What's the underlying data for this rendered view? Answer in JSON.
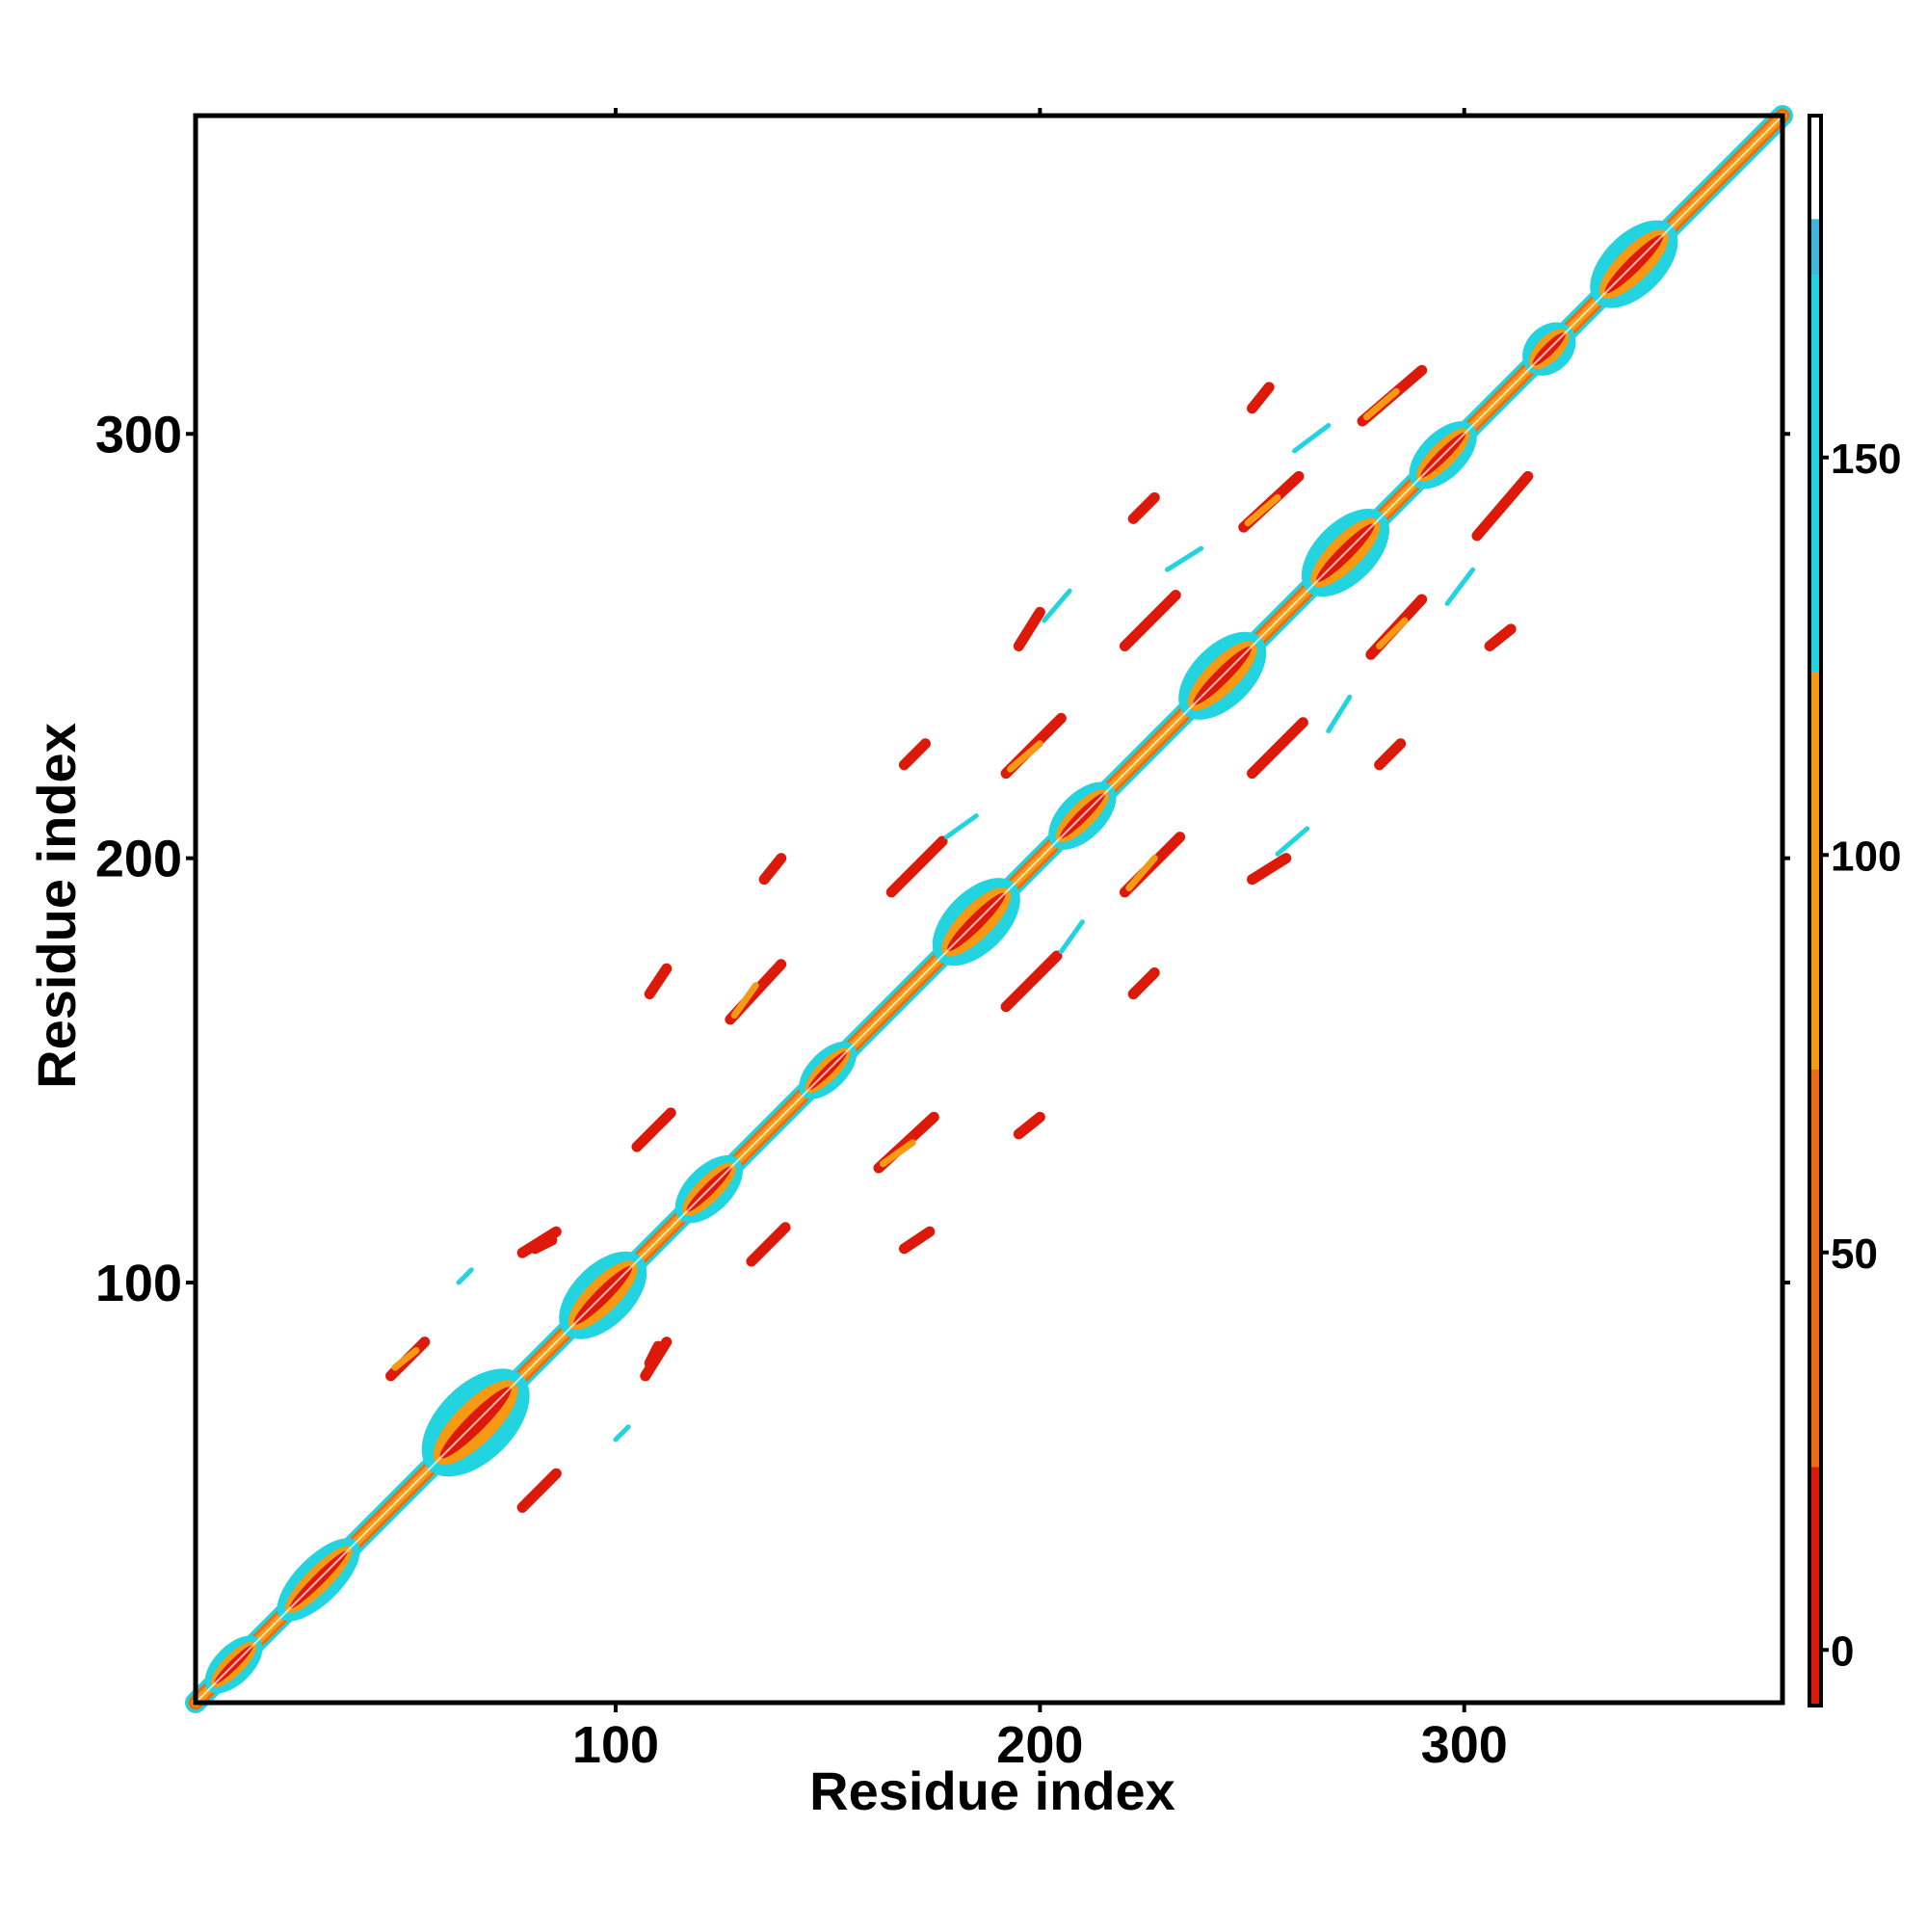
{
  "chart_data": {
    "type": "heatmap",
    "title": "",
    "xlabel": "Residue index",
    "ylabel": "Residue index",
    "xlim": [
      1,
      375
    ],
    "ylim": [
      1,
      375
    ],
    "x_ticks": [
      100,
      200,
      300
    ],
    "y_ticks": [
      100,
      200,
      300
    ],
    "grid": false,
    "colorbar": {
      "position": "right",
      "ticks": [
        0,
        50,
        100,
        150
      ],
      "range": [
        -7,
        193
      ],
      "bands": [
        {
          "from": -7,
          "to": 23,
          "color": "#dd1a0a"
        },
        {
          "from": 23,
          "to": 73,
          "color": "#f06a10"
        },
        {
          "from": 73,
          "to": 123,
          "color": "#f59a12"
        },
        {
          "from": 123,
          "to": 173,
          "color": "#22d3e0"
        },
        {
          "from": 173,
          "to": 180,
          "color": "#3bb8db"
        },
        {
          "from": 180,
          "to": 193,
          "color": "#ffffff"
        }
      ]
    },
    "diagonal": {
      "from": 1,
      "to": 375,
      "inner_color": "#f59a12",
      "edge_colors": [
        "#dd1a0a",
        "#f06a10",
        "#22d3e0"
      ]
    },
    "diagonal_blobs": [
      {
        "center": 10,
        "half_length": 6,
        "width": 5,
        "color": "#22d3e0"
      },
      {
        "center": 30,
        "half_length": 9,
        "width": 6,
        "color": "#22d3e0"
      },
      {
        "center": 67,
        "half_length": 11,
        "width": 10,
        "color": "#22d3e0"
      },
      {
        "center": 97,
        "half_length": 9,
        "width": 8,
        "color": "#22d3e0"
      },
      {
        "center": 122,
        "half_length": 7,
        "width": 6,
        "color": "#22d3e0"
      },
      {
        "center": 150,
        "half_length": 6,
        "width": 5,
        "color": "#22d3e0"
      },
      {
        "center": 185,
        "half_length": 9,
        "width": 8,
        "color": "#22d3e0"
      },
      {
        "center": 210,
        "half_length": 7,
        "width": 6,
        "color": "#22d3e0"
      },
      {
        "center": 243,
        "half_length": 9,
        "width": 8,
        "color": "#22d3e0"
      },
      {
        "center": 272,
        "half_length": 9,
        "width": 8,
        "color": "#22d3e0"
      },
      {
        "center": 295,
        "half_length": 7,
        "width": 6,
        "color": "#22d3e0"
      },
      {
        "center": 320,
        "half_length": 5,
        "width": 6,
        "color": "#22d3e0"
      },
      {
        "center": 340,
        "half_length": 9,
        "width": 8,
        "color": "#22d3e0"
      }
    ],
    "contact_streaks": [
      {
        "x1": 47,
        "y1": 78,
        "x2": 55,
        "y2": 86,
        "color": "#dd1a0a"
      },
      {
        "x1": 78,
        "y1": 47,
        "x2": 86,
        "y2": 55,
        "color": "#dd1a0a"
      },
      {
        "x1": 78,
        "y1": 107,
        "x2": 86,
        "y2": 112,
        "color": "#dd1a0a"
      },
      {
        "x1": 107,
        "y1": 78,
        "x2": 112,
        "y2": 86,
        "color": "#dd1a0a"
      },
      {
        "x1": 105,
        "y1": 132,
        "x2": 113,
        "y2": 140,
        "color": "#dd1a0a"
      },
      {
        "x1": 132,
        "y1": 105,
        "x2": 140,
        "y2": 113,
        "color": "#dd1a0a"
      },
      {
        "x1": 127,
        "y1": 162,
        "x2": 139,
        "y2": 175,
        "color": "#dd1a0a"
      },
      {
        "x1": 162,
        "y1": 127,
        "x2": 175,
        "y2": 139,
        "color": "#dd1a0a"
      },
      {
        "x1": 165,
        "y1": 192,
        "x2": 177,
        "y2": 204,
        "color": "#dd1a0a"
      },
      {
        "x1": 192,
        "y1": 165,
        "x2": 204,
        "y2": 177,
        "color": "#dd1a0a"
      },
      {
        "x1": 192,
        "y1": 220,
        "x2": 205,
        "y2": 233,
        "color": "#dd1a0a"
      },
      {
        "x1": 220,
        "y1": 192,
        "x2": 233,
        "y2": 205,
        "color": "#dd1a0a"
      },
      {
        "x1": 220,
        "y1": 250,
        "x2": 232,
        "y2": 262,
        "color": "#dd1a0a"
      },
      {
        "x1": 250,
        "y1": 220,
        "x2": 262,
        "y2": 232,
        "color": "#dd1a0a"
      },
      {
        "x1": 248,
        "y1": 278,
        "x2": 261,
        "y2": 290,
        "color": "#dd1a0a"
      },
      {
        "x1": 278,
        "y1": 248,
        "x2": 290,
        "y2": 261,
        "color": "#dd1a0a"
      },
      {
        "x1": 276,
        "y1": 303,
        "x2": 290,
        "y2": 315,
        "color": "#dd1a0a"
      },
      {
        "x1": 303,
        "y1": 276,
        "x2": 315,
        "y2": 290,
        "color": "#dd1a0a"
      },
      {
        "x1": 48,
        "y1": 80,
        "x2": 53,
        "y2": 84,
        "color": "#f59a12"
      },
      {
        "x1": 163,
        "y1": 128,
        "x2": 170,
        "y2": 133,
        "color": "#f59a12"
      },
      {
        "x1": 128,
        "y1": 163,
        "x2": 133,
        "y2": 170,
        "color": "#f59a12"
      },
      {
        "x1": 193,
        "y1": 221,
        "x2": 200,
        "y2": 227,
        "color": "#f59a12"
      },
      {
        "x1": 249,
        "y1": 279,
        "x2": 256,
        "y2": 285,
        "color": "#f59a12"
      },
      {
        "x1": 280,
        "y1": 250,
        "x2": 286,
        "y2": 256,
        "color": "#f59a12"
      },
      {
        "x1": 277,
        "y1": 304,
        "x2": 284,
        "y2": 310,
        "color": "#f59a12"
      },
      {
        "x1": 221,
        "y1": 193,
        "x2": 227,
        "y2": 200,
        "color": "#f59a12"
      },
      {
        "x1": 81,
        "y1": 108,
        "x2": 85,
        "y2": 110,
        "color": "#dd1a0a"
      },
      {
        "x1": 108,
        "y1": 81,
        "x2": 110,
        "y2": 85,
        "color": "#dd1a0a"
      },
      {
        "x1": 108,
        "y1": 168,
        "x2": 112,
        "y2": 174,
        "color": "#dd1a0a"
      },
      {
        "x1": 135,
        "y1": 195,
        "x2": 139,
        "y2": 200,
        "color": "#dd1a0a"
      },
      {
        "x1": 168,
        "y1": 108,
        "x2": 174,
        "y2": 112,
        "color": "#dd1a0a"
      },
      {
        "x1": 195,
        "y1": 135,
        "x2": 200,
        "y2": 139,
        "color": "#dd1a0a"
      },
      {
        "x1": 168,
        "y1": 222,
        "x2": 173,
        "y2": 227,
        "color": "#dd1a0a"
      },
      {
        "x1": 222,
        "y1": 168,
        "x2": 227,
        "y2": 173,
        "color": "#dd1a0a"
      },
      {
        "x1": 195,
        "y1": 250,
        "x2": 200,
        "y2": 258,
        "color": "#dd1a0a"
      },
      {
        "x1": 250,
        "y1": 195,
        "x2": 258,
        "y2": 200,
        "color": "#dd1a0a"
      },
      {
        "x1": 222,
        "y1": 280,
        "x2": 227,
        "y2": 285,
        "color": "#dd1a0a"
      },
      {
        "x1": 280,
        "y1": 222,
        "x2": 285,
        "y2": 227,
        "color": "#dd1a0a"
      },
      {
        "x1": 250,
        "y1": 306,
        "x2": 254,
        "y2": 311,
        "color": "#dd1a0a"
      },
      {
        "x1": 306,
        "y1": 250,
        "x2": 311,
        "y2": 254,
        "color": "#dd1a0a"
      },
      {
        "x1": 201,
        "y1": 256,
        "x2": 207,
        "y2": 263,
        "color": "#22d3e0"
      },
      {
        "x1": 230,
        "y1": 268,
        "x2": 238,
        "y2": 273,
        "color": "#22d3e0"
      },
      {
        "x1": 260,
        "y1": 296,
        "x2": 268,
        "y2": 302,
        "color": "#22d3e0"
      },
      {
        "x1": 256,
        "y1": 201,
        "x2": 263,
        "y2": 207,
        "color": "#22d3e0"
      },
      {
        "x1": 268,
        "y1": 230,
        "x2": 273,
        "y2": 238,
        "color": "#22d3e0"
      },
      {
        "x1": 296,
        "y1": 260,
        "x2": 302,
        "y2": 268,
        "color": "#22d3e0"
      },
      {
        "x1": 178,
        "y1": 205,
        "x2": 185,
        "y2": 210,
        "color": "#22d3e0"
      },
      {
        "x1": 205,
        "y1": 178,
        "x2": 210,
        "y2": 185,
        "color": "#22d3e0"
      },
      {
        "x1": 63,
        "y1": 100,
        "x2": 66,
        "y2": 103,
        "color": "#22d3e0"
      },
      {
        "x1": 100,
        "y1": 63,
        "x2": 103,
        "y2": 66,
        "color": "#22d3e0"
      }
    ]
  }
}
